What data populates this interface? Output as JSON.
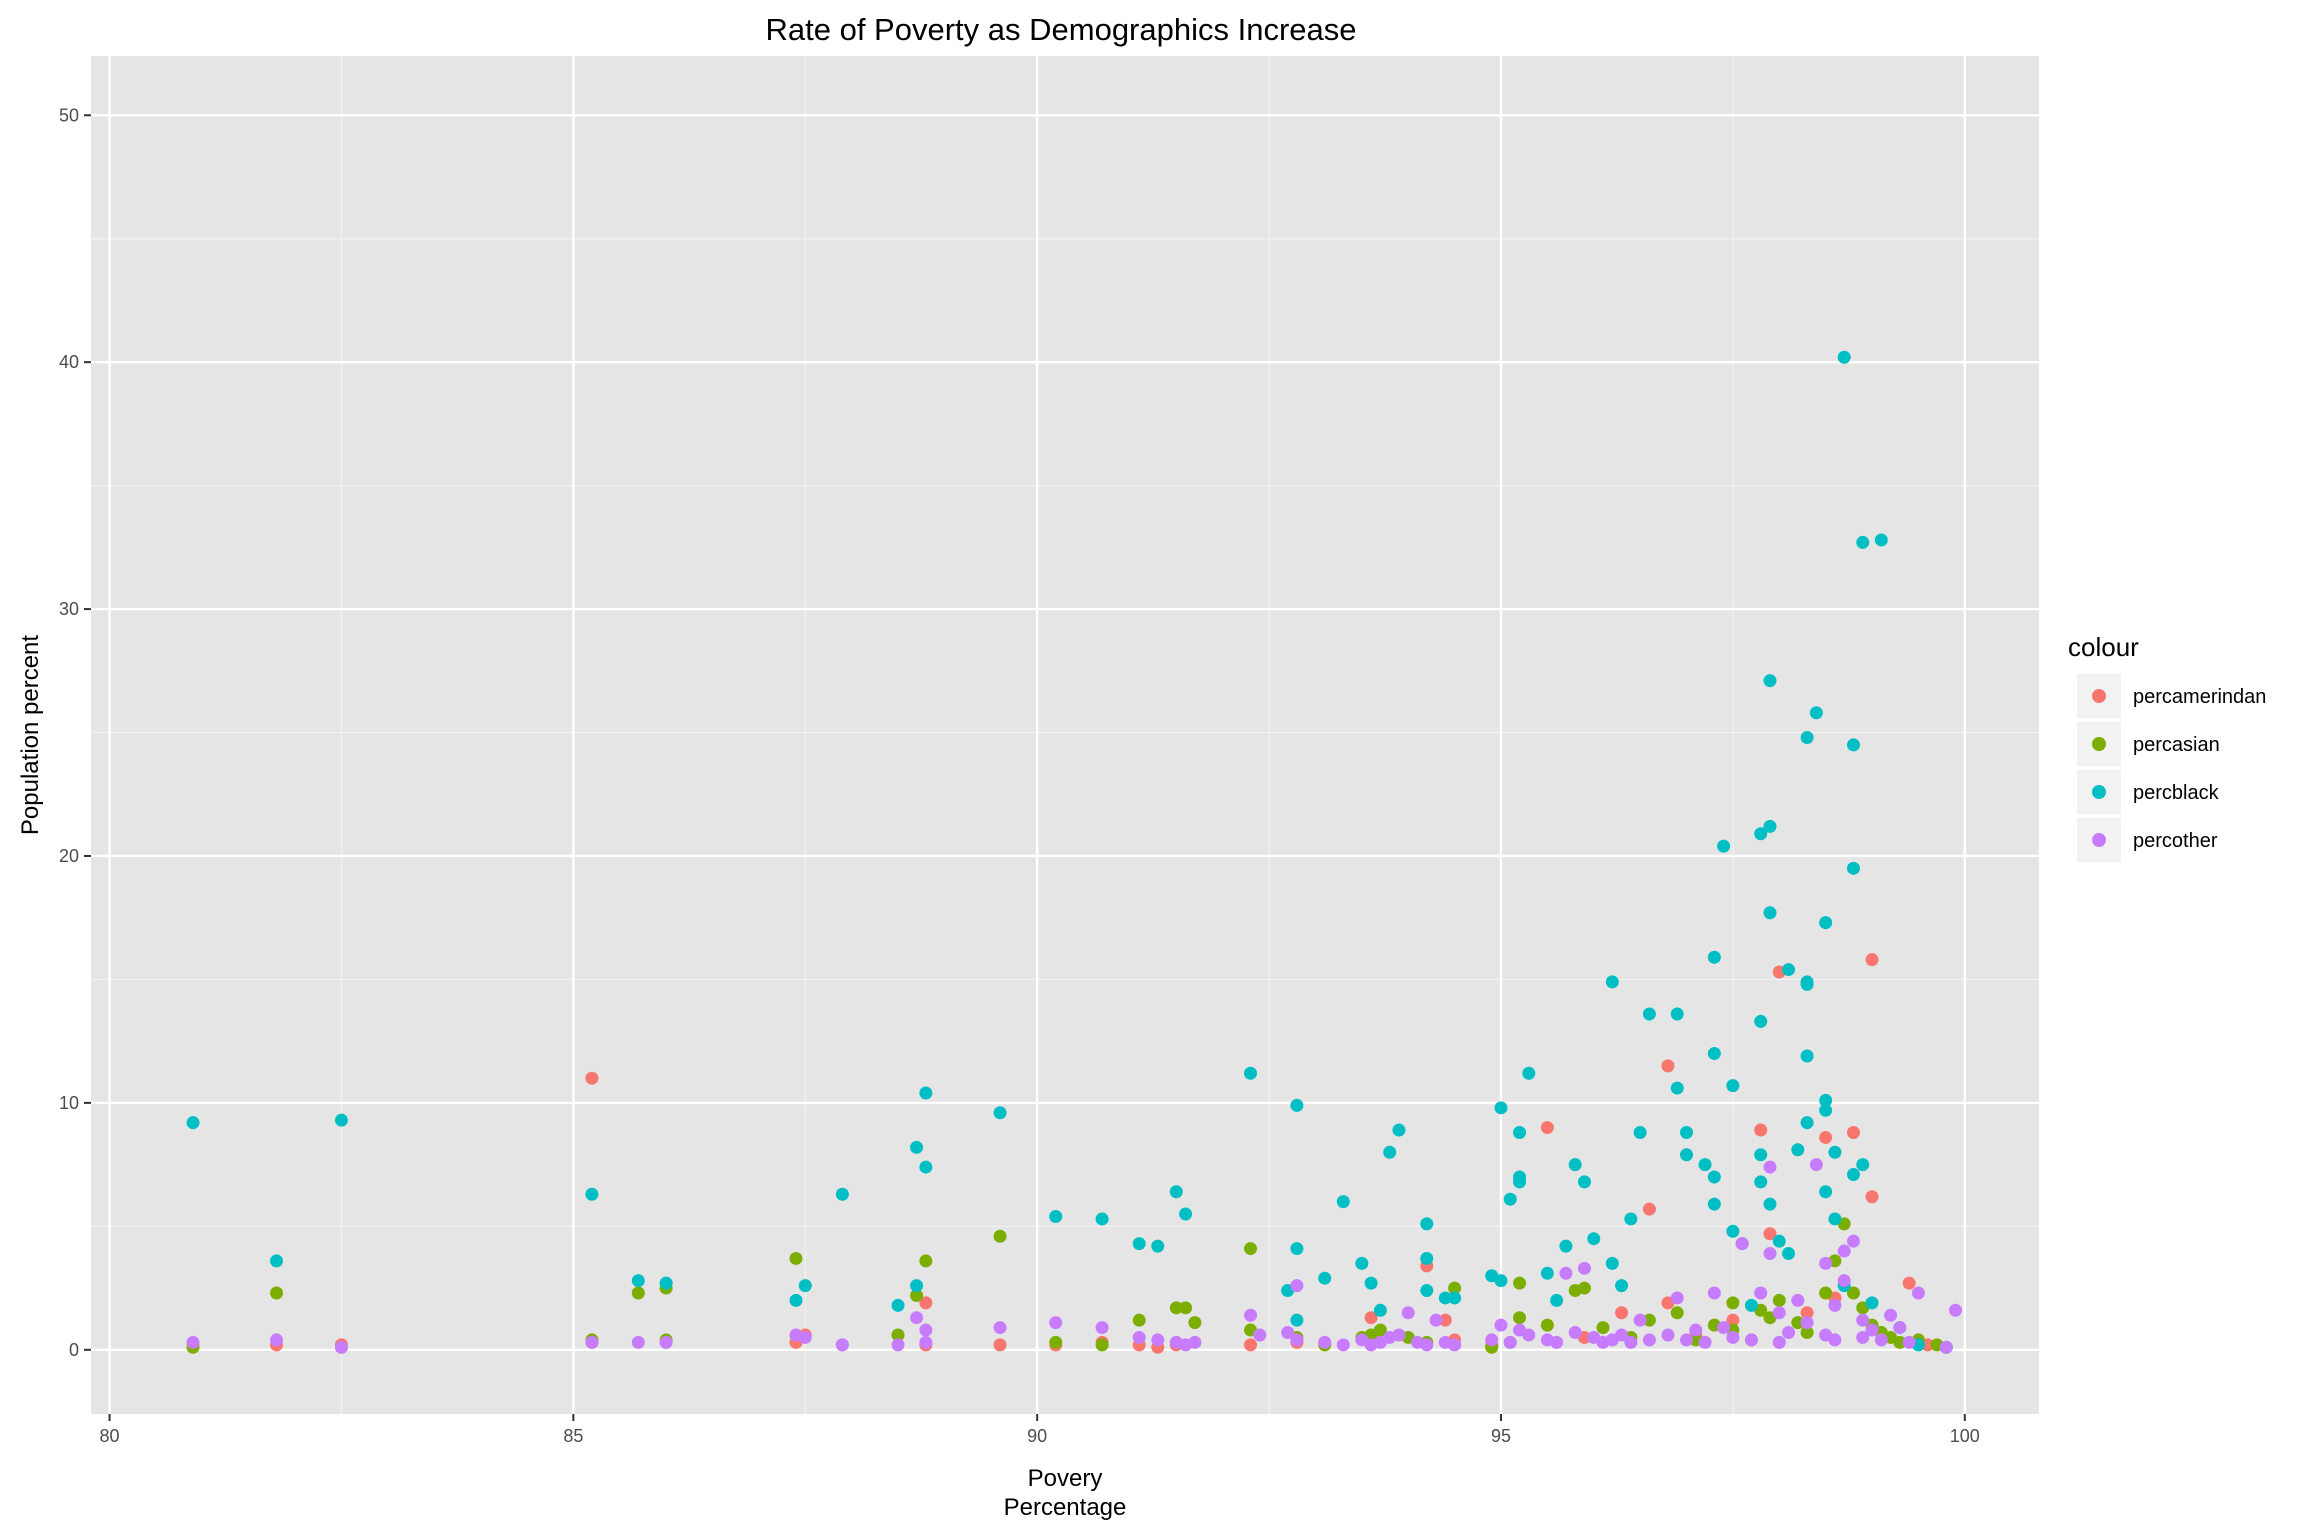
{
  "chart_data": {
    "type": "scatter",
    "title": "Rate of Poverty as Demographics Increase",
    "xlabel_lines": [
      "Povery",
      "Percentage"
    ],
    "ylabel": "Population percent",
    "xlim": [
      79.8,
      100.8
    ],
    "ylim": [
      -2.6,
      52.4
    ],
    "x_ticks": [
      80,
      85,
      90,
      95,
      100
    ],
    "y_ticks": [
      0,
      10,
      20,
      30,
      40,
      50
    ],
    "x_tick_labels": [
      "80",
      "85",
      "90",
      "95",
      "100"
    ],
    "y_tick_labels": [
      "0",
      "10",
      "20",
      "30",
      "40",
      "50"
    ],
    "grid": true,
    "legend": {
      "title": "colour",
      "position": "right"
    },
    "series": [
      {
        "name": "percamerindan",
        "color": "#F8766D",
        "points": [
          [
            80.9,
            0.2
          ],
          [
            81.8,
            0.2
          ],
          [
            82.5,
            0.2
          ],
          [
            85.2,
            11.0
          ],
          [
            85.2,
            0.3
          ],
          [
            86.0,
            0.3
          ],
          [
            87.4,
            0.3
          ],
          [
            87.5,
            0.6
          ],
          [
            87.9,
            0.2
          ],
          [
            88.8,
            1.9
          ],
          [
            88.8,
            0.2
          ],
          [
            89.6,
            0.2
          ],
          [
            90.2,
            0.2
          ],
          [
            90.7,
            0.3
          ],
          [
            91.1,
            0.2
          ],
          [
            91.3,
            0.1
          ],
          [
            91.5,
            0.2
          ],
          [
            92.3,
            0.2
          ],
          [
            92.8,
            0.3
          ],
          [
            93.6,
            1.3
          ],
          [
            94.2,
            3.4
          ],
          [
            94.4,
            1.2
          ],
          [
            94.5,
            0.4
          ],
          [
            94.9,
            0.2
          ],
          [
            95.5,
            9.0
          ],
          [
            95.9,
            0.5
          ],
          [
            96.3,
            1.5
          ],
          [
            96.6,
            5.7
          ],
          [
            96.8,
            11.5
          ],
          [
            96.8,
            1.9
          ],
          [
            97.1,
            0.6
          ],
          [
            97.5,
            1.2
          ],
          [
            97.8,
            8.9
          ],
          [
            97.9,
            4.7
          ],
          [
            98.0,
            15.3
          ],
          [
            98.3,
            1.5
          ],
          [
            98.5,
            8.6
          ],
          [
            98.6,
            2.1
          ],
          [
            98.8,
            8.8
          ],
          [
            99.0,
            15.8
          ],
          [
            99.0,
            6.2
          ],
          [
            99.4,
            2.7
          ],
          [
            99.6,
            0.2
          ],
          [
            99.8,
            0.1
          ]
        ]
      },
      {
        "name": "percasian",
        "color": "#7CAE00",
        "points": [
          [
            80.9,
            0.1
          ],
          [
            81.8,
            2.3
          ],
          [
            82.5,
            0.1
          ],
          [
            85.2,
            0.4
          ],
          [
            85.7,
            2.3
          ],
          [
            86.0,
            2.5
          ],
          [
            86.0,
            0.4
          ],
          [
            87.4,
            3.7
          ],
          [
            88.5,
            0.6
          ],
          [
            88.7,
            2.2
          ],
          [
            88.8,
            3.6
          ],
          [
            89.6,
            4.6
          ],
          [
            90.2,
            0.3
          ],
          [
            90.7,
            0.2
          ],
          [
            91.1,
            1.2
          ],
          [
            91.5,
            1.7
          ],
          [
            91.6,
            1.7
          ],
          [
            91.7,
            1.1
          ],
          [
            92.3,
            4.1
          ],
          [
            92.3,
            0.8
          ],
          [
            92.8,
            0.5
          ],
          [
            93.1,
            0.2
          ],
          [
            93.5,
            0.5
          ],
          [
            93.6,
            0.6
          ],
          [
            93.7,
            0.8
          ],
          [
            94.0,
            0.5
          ],
          [
            94.2,
            0.3
          ],
          [
            94.5,
            2.5
          ],
          [
            94.9,
            0.1
          ],
          [
            95.1,
            0.3
          ],
          [
            95.2,
            1.3
          ],
          [
            95.2,
            2.7
          ],
          [
            95.5,
            1.0
          ],
          [
            95.8,
            2.4
          ],
          [
            95.9,
            2.5
          ],
          [
            96.1,
            0.9
          ],
          [
            96.4,
            0.5
          ],
          [
            96.6,
            1.2
          ],
          [
            96.9,
            1.5
          ],
          [
            97.1,
            0.4
          ],
          [
            97.3,
            1.0
          ],
          [
            97.5,
            1.9
          ],
          [
            97.5,
            0.8
          ],
          [
            97.7,
            0.4
          ],
          [
            97.8,
            1.6
          ],
          [
            97.9,
            1.3
          ],
          [
            98.0,
            2.0
          ],
          [
            98.2,
            1.1
          ],
          [
            98.3,
            0.7
          ],
          [
            98.5,
            2.3
          ],
          [
            98.6,
            3.6
          ],
          [
            98.7,
            5.1
          ],
          [
            98.8,
            2.3
          ],
          [
            98.9,
            1.7
          ],
          [
            99.0,
            1.0
          ],
          [
            99.1,
            0.7
          ],
          [
            99.2,
            0.5
          ],
          [
            99.3,
            0.3
          ],
          [
            99.5,
            0.4
          ],
          [
            99.7,
            0.2
          ],
          [
            99.8,
            0.1
          ]
        ]
      },
      {
        "name": "percblack",
        "color": "#00BFC4",
        "points": [
          [
            80.9,
            9.2
          ],
          [
            81.8,
            3.6
          ],
          [
            82.5,
            9.3
          ],
          [
            85.2,
            6.3
          ],
          [
            85.7,
            2.8
          ],
          [
            86.0,
            2.7
          ],
          [
            87.4,
            2.0
          ],
          [
            87.5,
            2.6
          ],
          [
            87.9,
            6.3
          ],
          [
            88.5,
            1.8
          ],
          [
            88.7,
            8.2
          ],
          [
            88.7,
            2.6
          ],
          [
            88.8,
            7.4
          ],
          [
            88.8,
            10.4
          ],
          [
            89.6,
            9.6
          ],
          [
            90.2,
            5.4
          ],
          [
            90.7,
            5.3
          ],
          [
            91.1,
            4.3
          ],
          [
            91.3,
            4.2
          ],
          [
            91.5,
            6.4
          ],
          [
            91.6,
            5.5
          ],
          [
            92.3,
            11.2
          ],
          [
            92.7,
            2.4
          ],
          [
            92.8,
            4.1
          ],
          [
            92.8,
            9.9
          ],
          [
            92.8,
            1.2
          ],
          [
            93.1,
            2.9
          ],
          [
            93.3,
            6.0
          ],
          [
            93.5,
            3.5
          ],
          [
            93.6,
            2.7
          ],
          [
            93.7,
            1.6
          ],
          [
            93.8,
            8.0
          ],
          [
            93.9,
            8.9
          ],
          [
            94.2,
            5.1
          ],
          [
            94.2,
            3.7
          ],
          [
            94.2,
            2.4
          ],
          [
            94.4,
            2.1
          ],
          [
            94.5,
            2.1
          ],
          [
            94.9,
            3.0
          ],
          [
            95.0,
            9.8
          ],
          [
            95.0,
            2.8
          ],
          [
            95.1,
            6.1
          ],
          [
            95.2,
            7.0
          ],
          [
            95.2,
            8.8
          ],
          [
            95.2,
            6.8
          ],
          [
            95.3,
            11.2
          ],
          [
            95.5,
            3.1
          ],
          [
            95.6,
            2.0
          ],
          [
            95.7,
            4.2
          ],
          [
            95.8,
            7.5
          ],
          [
            95.9,
            6.8
          ],
          [
            96.0,
            4.5
          ],
          [
            96.2,
            14.9
          ],
          [
            96.2,
            3.5
          ],
          [
            96.3,
            2.6
          ],
          [
            96.4,
            5.3
          ],
          [
            96.5,
            8.8
          ],
          [
            96.6,
            13.6
          ],
          [
            96.9,
            13.6
          ],
          [
            96.9,
            10.6
          ],
          [
            97.0,
            8.8
          ],
          [
            97.0,
            7.9
          ],
          [
            97.2,
            7.5
          ],
          [
            97.3,
            15.9
          ],
          [
            97.3,
            7.0
          ],
          [
            97.3,
            5.9
          ],
          [
            97.3,
            12.0
          ],
          [
            97.4,
            20.4
          ],
          [
            97.5,
            4.8
          ],
          [
            97.5,
            10.7
          ],
          [
            97.6,
            4.3
          ],
          [
            97.7,
            1.8
          ],
          [
            97.8,
            13.3
          ],
          [
            97.8,
            20.9
          ],
          [
            97.9,
            21.2
          ],
          [
            97.9,
            27.1
          ],
          [
            97.9,
            17.7
          ],
          [
            97.8,
            7.9
          ],
          [
            97.8,
            6.8
          ],
          [
            97.9,
            5.9
          ],
          [
            98.0,
            4.4
          ],
          [
            98.1,
            3.9
          ],
          [
            98.1,
            15.4
          ],
          [
            98.2,
            8.1
          ],
          [
            98.3,
            14.8
          ],
          [
            98.3,
            14.9
          ],
          [
            98.3,
            11.9
          ],
          [
            98.3,
            24.8
          ],
          [
            98.3,
            9.2
          ],
          [
            98.4,
            25.8
          ],
          [
            98.5,
            10.1
          ],
          [
            98.5,
            17.3
          ],
          [
            98.5,
            9.7
          ],
          [
            98.5,
            6.4
          ],
          [
            98.6,
            8.0
          ],
          [
            98.6,
            5.3
          ],
          [
            98.7,
            40.2
          ],
          [
            98.8,
            24.5
          ],
          [
            98.8,
            19.5
          ],
          [
            98.8,
            7.1
          ],
          [
            98.9,
            32.7
          ],
          [
            98.9,
            7.5
          ],
          [
            99.1,
            32.8
          ],
          [
            98.7,
            2.6
          ],
          [
            99.0,
            1.9
          ],
          [
            99.3,
            0.9
          ],
          [
            99.5,
            0.2
          ],
          [
            99.8,
            0.1
          ]
        ]
      },
      {
        "name": "percother",
        "color": "#C77CFF",
        "points": [
          [
            80.9,
            0.3
          ],
          [
            81.8,
            0.4
          ],
          [
            82.5,
            0.1
          ],
          [
            85.2,
            0.3
          ],
          [
            85.7,
            0.3
          ],
          [
            86.0,
            0.3
          ],
          [
            87.4,
            0.6
          ],
          [
            87.5,
            0.5
          ],
          [
            87.9,
            0.2
          ],
          [
            88.5,
            0.2
          ],
          [
            88.7,
            1.3
          ],
          [
            88.8,
            0.8
          ],
          [
            88.8,
            0.3
          ],
          [
            89.6,
            0.9
          ],
          [
            90.2,
            1.1
          ],
          [
            90.7,
            0.9
          ],
          [
            91.1,
            0.5
          ],
          [
            91.3,
            0.4
          ],
          [
            91.5,
            0.3
          ],
          [
            91.6,
            0.2
          ],
          [
            91.7,
            0.3
          ],
          [
            92.3,
            1.4
          ],
          [
            92.4,
            0.6
          ],
          [
            92.7,
            0.7
          ],
          [
            92.8,
            2.6
          ],
          [
            92.8,
            0.4
          ],
          [
            93.1,
            0.3
          ],
          [
            93.3,
            0.2
          ],
          [
            93.5,
            0.4
          ],
          [
            93.6,
            0.2
          ],
          [
            93.7,
            0.3
          ],
          [
            93.8,
            0.5
          ],
          [
            93.9,
            0.6
          ],
          [
            94.0,
            1.5
          ],
          [
            94.1,
            0.3
          ],
          [
            94.2,
            0.2
          ],
          [
            94.3,
            1.2
          ],
          [
            94.4,
            0.3
          ],
          [
            94.5,
            0.2
          ],
          [
            94.9,
            0.4
          ],
          [
            95.0,
            1.0
          ],
          [
            95.1,
            0.3
          ],
          [
            95.2,
            0.8
          ],
          [
            95.3,
            0.6
          ],
          [
            95.5,
            0.4
          ],
          [
            95.6,
            0.3
          ],
          [
            95.7,
            3.1
          ],
          [
            95.8,
            0.7
          ],
          [
            95.9,
            3.3
          ],
          [
            96.0,
            0.5
          ],
          [
            96.1,
            0.3
          ],
          [
            96.2,
            0.4
          ],
          [
            96.3,
            0.6
          ],
          [
            96.4,
            0.3
          ],
          [
            96.5,
            1.2
          ],
          [
            96.6,
            0.4
          ],
          [
            96.8,
            0.6
          ],
          [
            96.9,
            2.1
          ],
          [
            97.0,
            0.4
          ],
          [
            97.1,
            0.8
          ],
          [
            97.2,
            0.3
          ],
          [
            97.3,
            2.3
          ],
          [
            97.4,
            0.9
          ],
          [
            97.5,
            0.5
          ],
          [
            97.6,
            4.3
          ],
          [
            97.7,
            0.4
          ],
          [
            97.8,
            2.3
          ],
          [
            97.9,
            7.4
          ],
          [
            97.9,
            3.9
          ],
          [
            98.0,
            1.5
          ],
          [
            98.0,
            0.3
          ],
          [
            98.1,
            0.7
          ],
          [
            98.2,
            2.0
          ],
          [
            98.3,
            1.1
          ],
          [
            98.4,
            7.5
          ],
          [
            98.5,
            3.5
          ],
          [
            98.5,
            0.6
          ],
          [
            98.6,
            1.8
          ],
          [
            98.6,
            0.4
          ],
          [
            98.7,
            4.0
          ],
          [
            98.7,
            2.8
          ],
          [
            98.8,
            4.4
          ],
          [
            98.9,
            1.2
          ],
          [
            98.9,
            0.5
          ],
          [
            99.0,
            0.8
          ],
          [
            99.1,
            0.4
          ],
          [
            99.2,
            1.4
          ],
          [
            99.3,
            0.9
          ],
          [
            99.4,
            0.3
          ],
          [
            99.5,
            2.3
          ],
          [
            99.8,
            0.1
          ],
          [
            99.9,
            1.6
          ]
        ]
      }
    ]
  }
}
